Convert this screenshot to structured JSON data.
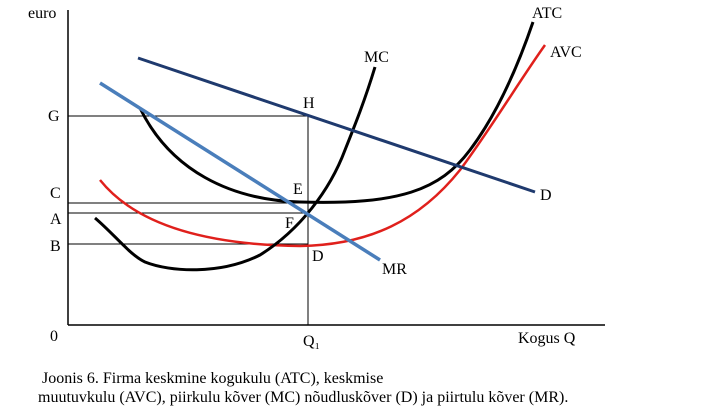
{
  "axes": {
    "y_label": "euro",
    "origin": "0",
    "x_label": "Kogus Q",
    "q_label": "Q₁"
  },
  "y_points": [
    "G",
    "C",
    "A",
    "B"
  ],
  "curves": {
    "atc": "ATC",
    "avc": "AVC",
    "mc": "MC",
    "d": "D",
    "mr": "MR"
  },
  "points": {
    "h": "H",
    "e": "E",
    "f": "F",
    "d": "D"
  },
  "caption": [
    "Joonis 6. Firma keskmine kogukulu (ATC), keskmise",
    "muutuvkulu (AVC),  piirkulu kõver (MC) nõudluskõver (D) ja piirtulu kõver (MR)."
  ]
}
